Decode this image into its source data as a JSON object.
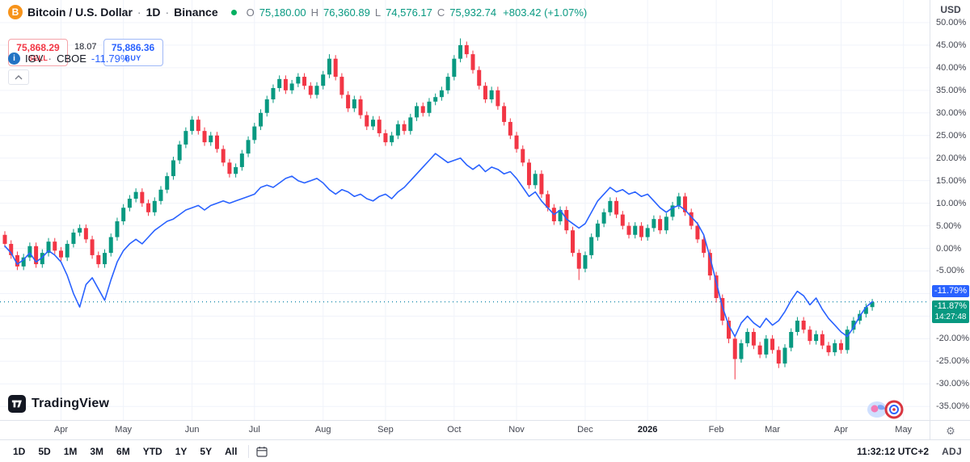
{
  "header": {
    "symbol": "Bitcoin / U.S. Dollar",
    "interval": "1D",
    "exchange": "Binance",
    "sep": "·",
    "ohlc": {
      "o_label": "O",
      "o": "75,180.00",
      "h_label": "H",
      "h": "76,360.89",
      "l_label": "L",
      "l": "74,576.17",
      "c_label": "C",
      "c": "75,932.74",
      "change": "+803.42 (+1.07%)"
    },
    "currency_button": "USD"
  },
  "trade_panel": {
    "sell_price": "75,868.29",
    "sell_label": "SELL",
    "spread": "18.07",
    "buy_price": "75,886.36",
    "buy_label": "BUY"
  },
  "compare": {
    "symbol": "IGV",
    "sep": "·",
    "exchange": "CBOE",
    "value": "-11.79%"
  },
  "icons": {
    "bitcoin_logo_char": "B",
    "info_char": "i",
    "gear": "⚙"
  },
  "logo": {
    "text": "TradingView"
  },
  "price_axis": {
    "badges": [
      {
        "label": "-11.79%",
        "v": -11.79,
        "color": "#2962FF"
      },
      {
        "label": "-11.87%",
        "sub": "14:27:48",
        "v": -11.87,
        "color": "#089981"
      }
    ]
  },
  "toolbar": {
    "ranges": [
      "1D",
      "5D",
      "1M",
      "3M",
      "6M",
      "YTD",
      "1Y",
      "5Y",
      "All"
    ],
    "clock": "11:32:12 UTC+2",
    "adj": "ADJ"
  },
  "chart_data": {
    "type": "candlestick+line",
    "title": "Bitcoin / U.S. Dollar (1D, Binance) vs IGV (CBOE), percent change",
    "ylim": [
      -38,
      55
    ],
    "x_start": 6,
    "x_step": 7.72,
    "grid": true,
    "legend_position": "top-left",
    "colors": {
      "up": "#089981",
      "down": "#F23645",
      "line": "#2962FF",
      "grid": "#f0f3fa"
    },
    "ticks": [
      {
        "v": 50,
        "label": "50.00%"
      },
      {
        "v": 45,
        "label": "45.00%"
      },
      {
        "v": 40,
        "label": "40.00%"
      },
      {
        "v": 35,
        "label": "35.00%"
      },
      {
        "v": 30,
        "label": "30.00%"
      },
      {
        "v": 25,
        "label": "25.00%"
      },
      {
        "v": 20,
        "label": "20.00%"
      },
      {
        "v": 15,
        "label": "15.00%"
      },
      {
        "v": 10,
        "label": "10.00%"
      },
      {
        "v": 5,
        "label": "5.00%"
      },
      {
        "v": 0,
        "label": "0.00%"
      },
      {
        "v": -5,
        "label": "-5.00%"
      },
      {
        "v": -10,
        "label": "-10.00%"
      },
      {
        "v": -15,
        "label": "-15.00%"
      },
      {
        "v": -20,
        "label": "-20.00%"
      },
      {
        "v": -25,
        "label": "-25.00%"
      },
      {
        "v": -30,
        "label": "-30.00%"
      },
      {
        "v": -35,
        "label": "-35.00%"
      }
    ],
    "months": [
      {
        "label": "Apr",
        "i": 9
      },
      {
        "label": "May",
        "i": 19
      },
      {
        "label": "Jun",
        "i": 30
      },
      {
        "label": "Jul",
        "i": 40
      },
      {
        "label": "Aug",
        "i": 51
      },
      {
        "label": "Sep",
        "i": 61
      },
      {
        "label": "Oct",
        "i": 72
      },
      {
        "label": "Nov",
        "i": 82
      },
      {
        "label": "Dec",
        "i": 93
      },
      {
        "label": "2026",
        "i": 103,
        "strong": true
      },
      {
        "label": "Feb",
        "i": 114
      },
      {
        "label": "Mar",
        "i": 123
      },
      {
        "label": "Apr",
        "i": 134
      },
      {
        "label": "May",
        "i": 144
      }
    ],
    "price_lines": [
      {
        "v": -11.79,
        "color": "#2962FF"
      },
      {
        "v": -11.87,
        "color": "#089981"
      }
    ],
    "series": [
      {
        "name": "BTCUSD percent change (candles)",
        "type": "candlestick",
        "candles": [
          [
            3,
            3.8,
            0.2,
            1
          ],
          [
            1,
            1.8,
            -2.3,
            -1.5
          ],
          [
            -1.5,
            -0.7,
            -4.8,
            -4
          ],
          [
            -4,
            -1.2,
            -4.8,
            -2
          ],
          [
            -2,
            1.3,
            -2.8,
            0.5
          ],
          [
            0.5,
            1.3,
            -4.3,
            -3.5
          ],
          [
            -3.5,
            -0.2,
            -4.3,
            -1
          ],
          [
            -1,
            2.3,
            -1.8,
            1.5
          ],
          [
            1.5,
            2.3,
            -1.3,
            -0.5
          ],
          [
            -0.5,
            0.3,
            -2.8,
            -2
          ],
          [
            -2,
            1.8,
            -2.8,
            1
          ],
          [
            1,
            4.3,
            0.2,
            3.5
          ],
          [
            3.5,
            5.3,
            2.7,
            4.5
          ],
          [
            4.5,
            5.3,
            1.2,
            2
          ],
          [
            2,
            2.8,
            -2.3,
            -1.5
          ],
          [
            -1.5,
            -0.7,
            -4.3,
            -3.5
          ],
          [
            -3.5,
            -0.2,
            -4.3,
            -1
          ],
          [
            -1,
            3.3,
            -1.8,
            2.5
          ],
          [
            2.5,
            6.8,
            1.7,
            6
          ],
          [
            6,
            9.8,
            5.2,
            9
          ],
          [
            9,
            11.8,
            8.2,
            11
          ],
          [
            11,
            13.3,
            10.2,
            12.5
          ],
          [
            12.5,
            13.3,
            9.2,
            10
          ],
          [
            10,
            10.8,
            7.2,
            8
          ],
          [
            8,
            11.3,
            7.2,
            10.5
          ],
          [
            10.5,
            13.8,
            9.7,
            13
          ],
          [
            13,
            16.8,
            12.2,
            16
          ],
          [
            16,
            20.3,
            15.2,
            19.5
          ],
          [
            19.5,
            23.8,
            18.7,
            23
          ],
          [
            23,
            26.8,
            22.2,
            26
          ],
          [
            26,
            29.3,
            25.2,
            28.5
          ],
          [
            28.5,
            29.3,
            25.2,
            26
          ],
          [
            26,
            26.8,
            22.7,
            23.5
          ],
          [
            23.5,
            25.8,
            22.7,
            25
          ],
          [
            25,
            25.8,
            21.2,
            22
          ],
          [
            22,
            22.8,
            18.2,
            19
          ],
          [
            19,
            19.8,
            15.7,
            16.5
          ],
          [
            16.5,
            18.8,
            15.7,
            18
          ],
          [
            18,
            21.8,
            17.2,
            21
          ],
          [
            21,
            24.8,
            20.2,
            24
          ],
          [
            24,
            27.8,
            23.2,
            27
          ],
          [
            27,
            30.8,
            26.2,
            30
          ],
          [
            30,
            33.8,
            29.2,
            33
          ],
          [
            33,
            36.3,
            32.2,
            35.5
          ],
          [
            35.5,
            38.3,
            34.7,
            37.5
          ],
          [
            37.5,
            38.3,
            34.2,
            35
          ],
          [
            35,
            37.3,
            34.2,
            36.5
          ],
          [
            36.5,
            38.8,
            35.7,
            38
          ],
          [
            38,
            38.8,
            35.2,
            36
          ],
          [
            36,
            36.8,
            33.2,
            34
          ],
          [
            34,
            36.8,
            33.2,
            36
          ],
          [
            36,
            39.3,
            35.2,
            38.5
          ],
          [
            38.5,
            43,
            37.7,
            42
          ],
          [
            42,
            42.8,
            37.2,
            38
          ],
          [
            38,
            38.8,
            33.2,
            34
          ],
          [
            34,
            34.8,
            30.2,
            31
          ],
          [
            31,
            33.8,
            30.2,
            33
          ],
          [
            33,
            33.8,
            28.7,
            29.5
          ],
          [
            29.5,
            30.3,
            26.2,
            27
          ],
          [
            27,
            29.3,
            26.2,
            28.5
          ],
          [
            28.5,
            29.3,
            24.7,
            25.5
          ],
          [
            25.5,
            26.3,
            22.7,
            23.5
          ],
          [
            23.5,
            25.8,
            22.7,
            25
          ],
          [
            25,
            28.3,
            24.2,
            27.5
          ],
          [
            27.5,
            28.3,
            25.2,
            26
          ],
          [
            26,
            29.8,
            25.2,
            29
          ],
          [
            29,
            32.3,
            28.2,
            31.5
          ],
          [
            31.5,
            32.3,
            29.2,
            30
          ],
          [
            30,
            33.3,
            29.2,
            32.5
          ],
          [
            32.5,
            34.3,
            31.7,
            33.5
          ],
          [
            33.5,
            35.8,
            32.7,
            35
          ],
          [
            35,
            38.8,
            34.2,
            38
          ],
          [
            38,
            42.8,
            37.2,
            42
          ],
          [
            42,
            46.5,
            41.2,
            45
          ],
          [
            45,
            45.8,
            42.2,
            43
          ],
          [
            43,
            43.8,
            38.7,
            39.5
          ],
          [
            39.5,
            40.3,
            35.2,
            36
          ],
          [
            36,
            36.8,
            32.2,
            33
          ],
          [
            33,
            35.8,
            32.2,
            35
          ],
          [
            35,
            35.8,
            30.7,
            31.5
          ],
          [
            31.5,
            32.3,
            27.2,
            28
          ],
          [
            28,
            28.8,
            24.2,
            25
          ],
          [
            25,
            25.8,
            21.2,
            22
          ],
          [
            22,
            22.8,
            18.2,
            19
          ],
          [
            19,
            19.8,
            13.2,
            14
          ],
          [
            14,
            17.3,
            13.2,
            16.5
          ],
          [
            16.5,
            17.3,
            11.2,
            12
          ],
          [
            12,
            12.8,
            8.2,
            9
          ],
          [
            9,
            9.8,
            5.2,
            6
          ],
          [
            6,
            9.3,
            5.2,
            8.5
          ],
          [
            8.5,
            9.3,
            3.2,
            4
          ],
          [
            4,
            4.8,
            -1.8,
            -1
          ],
          [
            -1,
            -0.2,
            -7,
            -4.5
          ],
          [
            -4.5,
            -0.7,
            -5.3,
            -1.5
          ],
          [
            -1.5,
            3.3,
            -2.3,
            2.5
          ],
          [
            2.5,
            6.3,
            1.7,
            5.5
          ],
          [
            5.5,
            8.8,
            4.7,
            8
          ],
          [
            8,
            11.3,
            7.2,
            10.5
          ],
          [
            10.5,
            11.3,
            6.7,
            7.5
          ],
          [
            7.5,
            8.3,
            4.2,
            5
          ],
          [
            5,
            5.8,
            2.2,
            3
          ],
          [
            3,
            5.8,
            2.2,
            5
          ],
          [
            5,
            5.8,
            1.7,
            2.5
          ],
          [
            2.5,
            5.3,
            1.7,
            4.5
          ],
          [
            4.5,
            7.3,
            3.7,
            6.5
          ],
          [
            6.5,
            7.3,
            3.2,
            4
          ],
          [
            4,
            7.8,
            3.2,
            7
          ],
          [
            7,
            10.3,
            6.2,
            9.5
          ],
          [
            9.5,
            12.3,
            8.7,
            11.5
          ],
          [
            11.5,
            12.3,
            7.2,
            8
          ],
          [
            8,
            8.8,
            4.2,
            5
          ],
          [
            5,
            5.8,
            1.2,
            2
          ],
          [
            2,
            2.8,
            -2,
            -1
          ],
          [
            -1,
            -0.2,
            -7,
            -6
          ],
          [
            -6,
            -5.2,
            -12,
            -11
          ],
          [
            -11,
            -10.2,
            -17,
            -16
          ],
          [
            -16,
            -15.2,
            -21,
            -20
          ],
          [
            -20,
            -19.2,
            -29,
            -24.5
          ],
          [
            -24.5,
            -20.2,
            -25.3,
            -21
          ],
          [
            -21,
            -17.7,
            -21.8,
            -18.5
          ],
          [
            -18.5,
            -17.7,
            -22.3,
            -21.5
          ],
          [
            -21.5,
            -20.7,
            -24.3,
            -23.5
          ],
          [
            -23.5,
            -19.2,
            -24.3,
            -20
          ],
          [
            -20,
            -19.2,
            -23.3,
            -22.5
          ],
          [
            -22.5,
            -21.7,
            -26.5,
            -25.5
          ],
          [
            -25.5,
            -21.2,
            -26.3,
            -22
          ],
          [
            -22,
            -17.7,
            -22.8,
            -18.5
          ],
          [
            -18.5,
            -15.2,
            -19.3,
            -16
          ],
          [
            -16,
            -15.2,
            -18.8,
            -18
          ],
          [
            -18,
            -17.2,
            -21.3,
            -20.5
          ],
          [
            -20.5,
            -18.2,
            -21.3,
            -19
          ],
          [
            -19,
            -18.2,
            -22.3,
            -21.5
          ],
          [
            -21.5,
            -20.7,
            -23.8,
            -23
          ],
          [
            -23,
            -20.2,
            -23.8,
            -21
          ],
          [
            -21,
            -20.2,
            -23.3,
            -22.5
          ],
          [
            -22.5,
            -17.2,
            -23.3,
            -18
          ],
          [
            -18,
            -15.2,
            -18.8,
            -16
          ],
          [
            -16,
            -13.7,
            -16.8,
            -14.5
          ],
          [
            -14.5,
            -12.2,
            -15.3,
            -13
          ],
          [
            -13,
            -11.2,
            -13.8,
            -11.9
          ]
        ]
      },
      {
        "name": "IGV CBOE percent change (line)",
        "type": "line",
        "values": [
          0.5,
          -1,
          -3.5,
          -2.5,
          -1,
          -3,
          -2,
          -0.5,
          -1.5,
          -3,
          -6,
          -10,
          -13,
          -8,
          -6.5,
          -9,
          -11.5,
          -7,
          -3,
          -0.5,
          1,
          2,
          1,
          2.5,
          4,
          5,
          6,
          6.5,
          7.5,
          8.5,
          9,
          9.5,
          8.5,
          9.5,
          10,
          10.5,
          10,
          10.5,
          11,
          11.5,
          12,
          13.5,
          14,
          13.5,
          14.5,
          15.5,
          16,
          15,
          14.5,
          15,
          15.5,
          14.5,
          13,
          12,
          13,
          12.5,
          11.5,
          12,
          11,
          10.5,
          11.5,
          12,
          11,
          12.5,
          13.5,
          15,
          16.5,
          18,
          19.5,
          21,
          20,
          19,
          19.5,
          20,
          18.5,
          17.5,
          18.5,
          17,
          18,
          17.5,
          16.5,
          17,
          15.5,
          13.5,
          11.5,
          12.5,
          10.5,
          9,
          7.5,
          8.5,
          6.5,
          5.5,
          4.5,
          5.5,
          8,
          10.5,
          12,
          13.5,
          12.5,
          13,
          12,
          12.5,
          11.5,
          12,
          10.5,
          9,
          8,
          9,
          9.5,
          8.5,
          7,
          5.5,
          3,
          -2,
          -7.5,
          -13,
          -17,
          -19.5,
          -16.5,
          -15,
          -16.5,
          -17.5,
          -15.5,
          -17,
          -16,
          -14,
          -11.5,
          -9.5,
          -10.5,
          -12.5,
          -11,
          -13.5,
          -15.5,
          -17,
          -18.5,
          -19.5,
          -17.5,
          -15,
          -13,
          -11.8
        ]
      }
    ]
  }
}
